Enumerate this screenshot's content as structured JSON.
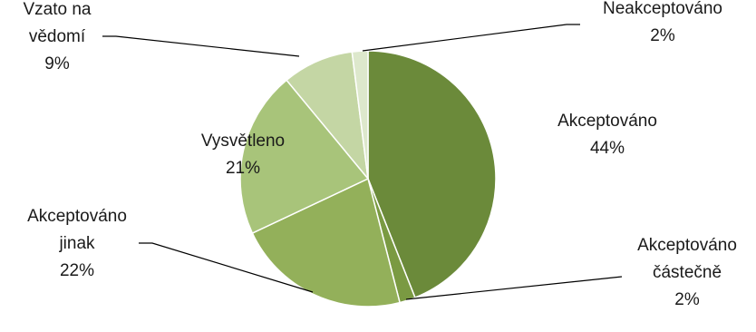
{
  "chart_data": {
    "type": "pie",
    "title": "",
    "slices": [
      {
        "name": "Akceptováno",
        "value": 44,
        "label_lines": [
          "Akceptováno",
          "44%"
        ],
        "color": "#6b8a3a"
      },
      {
        "name": "Akceptováno částečně",
        "value": 2,
        "label_lines": [
          "Akceptováno",
          "částečně",
          "2%"
        ],
        "color": "#7a9a42"
      },
      {
        "name": "Akceptováno jinak",
        "value": 22,
        "label_lines": [
          "Akceptováno",
          "jinak",
          "22%"
        ],
        "color": "#93b05a"
      },
      {
        "name": "Vysvětleno",
        "value": 21,
        "label_lines": [
          "Vysvětleno",
          "21%"
        ],
        "color": "#a8c47a"
      },
      {
        "name": "Vzato na vědomí",
        "value": 9,
        "label_lines": [
          "Vzato na",
          "vědomí",
          "9%"
        ],
        "color": "#c4d6a4"
      },
      {
        "name": "Neakceptováno",
        "value": 2,
        "label_lines": [
          "Neakceptováno",
          "2%"
        ],
        "color": "#dde8cc"
      }
    ],
    "legend": "none",
    "data_labels": "outside with leader lines"
  }
}
